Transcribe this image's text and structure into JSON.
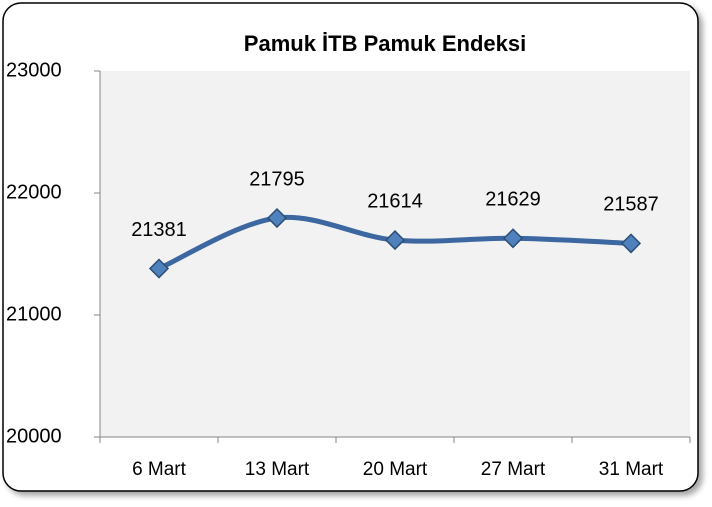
{
  "chart_data": {
    "type": "line",
    "title": "Pamuk İTB Pamuk Endeksi",
    "categories": [
      "6 Mart",
      "13 Mart",
      "20 Mart",
      "27 Mart",
      "31 Mart"
    ],
    "series": [
      {
        "name": "Pamuk İTB Pamuk Endeksi",
        "color": "#3c67a0",
        "values": [
          21381,
          21795,
          21614,
          21629,
          21587
        ]
      }
    ],
    "ylim": [
      20000,
      23000
    ],
    "yticks": [
      20000,
      21000,
      22000,
      23000
    ],
    "grid": false
  }
}
